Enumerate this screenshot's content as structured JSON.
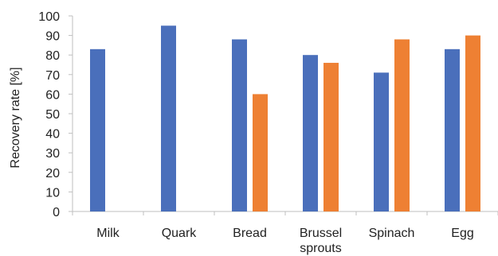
{
  "chart_data": {
    "type": "bar",
    "title": "",
    "xlabel": "",
    "ylabel": "Recovery rate [%]",
    "ylim": [
      0,
      100
    ],
    "yticks": [
      0,
      10,
      20,
      30,
      40,
      50,
      60,
      70,
      80,
      90,
      100
    ],
    "categories": [
      [
        "Milk"
      ],
      [
        "Quark"
      ],
      [
        "Bread"
      ],
      [
        "Brussel",
        "sprouts"
      ],
      [
        "Spinach"
      ],
      [
        "Egg"
      ]
    ],
    "series": [
      {
        "values": [
          83,
          95,
          88,
          80,
          71,
          83
        ],
        "color": "#4a6fbb"
      },
      {
        "values": [
          null,
          null,
          60,
          76,
          88,
          90
        ],
        "color": "#ee8033"
      }
    ],
    "grid": false,
    "legend": "none"
  }
}
